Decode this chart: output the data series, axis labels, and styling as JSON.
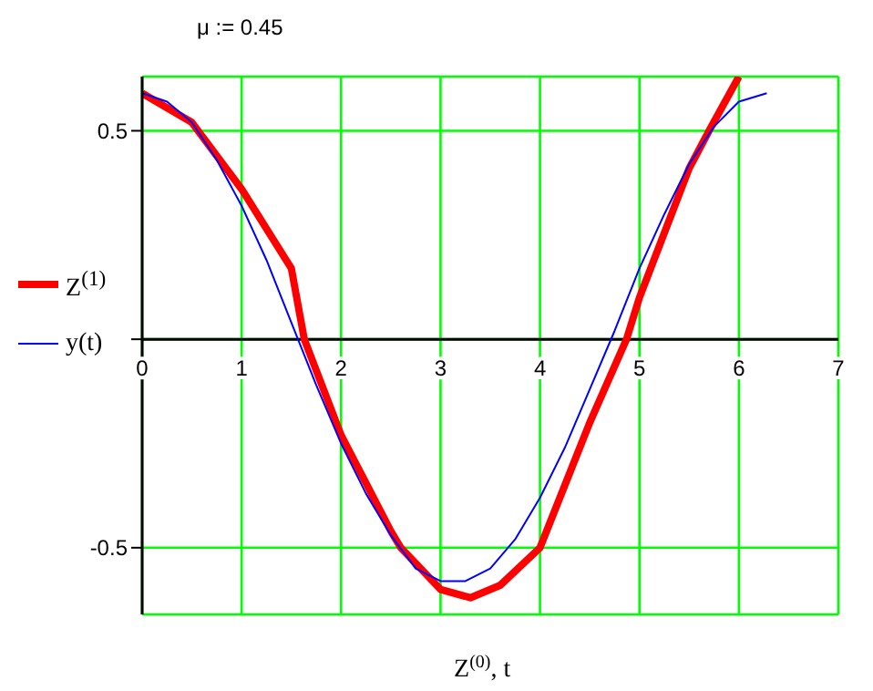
{
  "chart_data": {
    "type": "line",
    "annotations": [
      "μ := 0.45"
    ],
    "xlabel": "Z$^{(0)}$, t",
    "xlim": [
      0,
      7
    ],
    "xticks": [
      0,
      1,
      2,
      3,
      4,
      5,
      6,
      7
    ],
    "ylim": [
      -0.66,
      0.63
    ],
    "yticks": [
      -0.5,
      {
        "value": 0,
        "label": null
      },
      0.5
    ],
    "grid": true,
    "legend": "left",
    "marker": "none",
    "line_style": "solid",
    "series": [
      {
        "name": "Z$^{(1)}$",
        "color": "#ff0000",
        "x": [
          0,
          0.5,
          1.0,
          1.5,
          1.63,
          2.0,
          2.5,
          2.6,
          3.0,
          3.3,
          3.6,
          4.0,
          4.5,
          4.87,
          5.0,
          5.5,
          5.7,
          6.0
        ],
        "values": [
          0.59,
          0.52,
          0.36,
          0.17,
          0,
          -0.23,
          -0.46,
          -0.5,
          -0.6,
          -0.62,
          -0.59,
          -0.5,
          -0.2,
          0,
          0.1,
          0.41,
          0.5,
          0.63
        ]
      },
      {
        "name": "y(t)",
        "color": "#0000ff",
        "x": [
          0,
          0.25,
          0.5,
          0.75,
          1,
          1.25,
          1.5,
          1.75,
          2,
          2.25,
          2.5,
          2.75,
          3,
          3.25,
          3.5,
          3.75,
          4,
          4.25,
          4.5,
          4.75,
          5,
          5.25,
          5.5,
          5.75,
          6,
          6.28
        ],
        "values": [
          0.59,
          0.57,
          0.52,
          0.43,
          0.32,
          0.19,
          0.04,
          -0.11,
          -0.25,
          -0.37,
          -0.47,
          -0.55,
          -0.58,
          -0.58,
          -0.55,
          -0.48,
          -0.38,
          -0.26,
          -0.12,
          0.02,
          0.17,
          0.3,
          0.42,
          0.51,
          0.57,
          0.59
        ]
      }
    ]
  }
}
